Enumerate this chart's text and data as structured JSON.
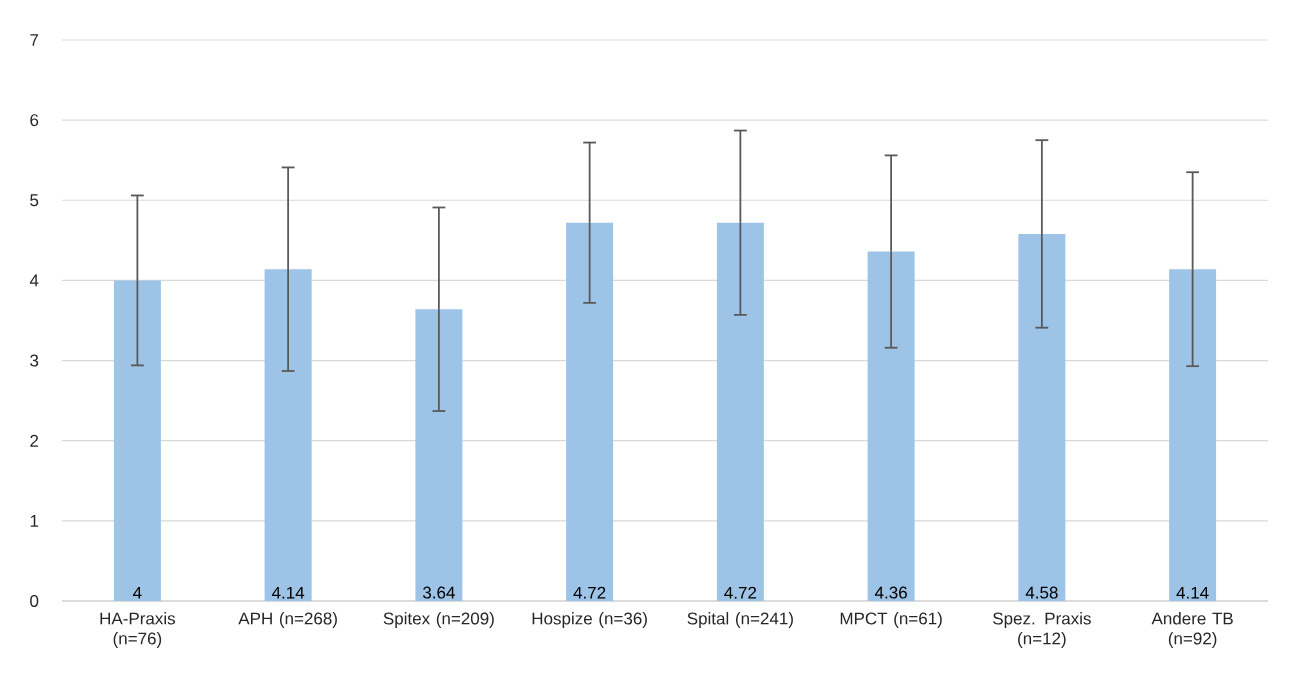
{
  "chart_data": {
    "type": "bar",
    "categories": [
      "HA-Praxis (n=76)",
      "APH (n=268)",
      "Spitex (n=209)",
      "Hospize (n=36)",
      "Spital (n=241)",
      "MPCT (n=61)",
      "Spez. Praxis (n=12)",
      "Andere TB (n=92)"
    ],
    "values": [
      4,
      4.14,
      3.64,
      4.72,
      4.72,
      4.36,
      4.58,
      4.14
    ],
    "errors": [
      1.06,
      1.27,
      1.27,
      1.0,
      1.15,
      1.2,
      1.17,
      1.21
    ],
    "color": "#9dc3e6",
    "ylim": [
      0,
      7
    ],
    "yticks": [
      0,
      1,
      2,
      3,
      4,
      5,
      6,
      7
    ],
    "grid": "y",
    "data_labels": true
  }
}
